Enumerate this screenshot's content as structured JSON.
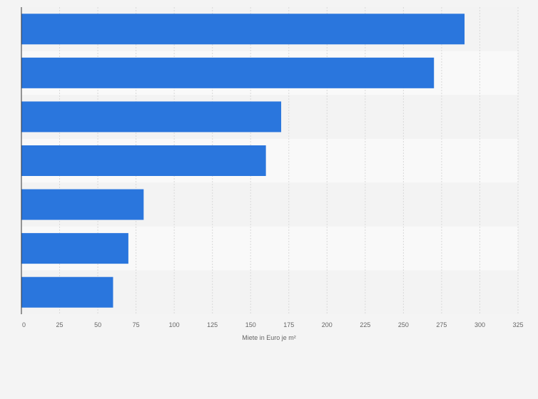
{
  "chart_data": {
    "type": "bar",
    "orientation": "horizontal",
    "title": "",
    "xlabel": "Miete in Euro je m²",
    "ylabel": "",
    "categories": [
      "",
      "",
      "",
      "",
      "",
      "",
      ""
    ],
    "values": [
      290,
      270,
      170,
      160,
      80,
      70,
      60
    ],
    "xlim": [
      0,
      325
    ],
    "xticks": [
      0,
      25,
      50,
      75,
      100,
      125,
      150,
      175,
      200,
      225,
      250,
      275,
      300,
      325
    ],
    "grid": true,
    "legend": "none",
    "colors": {
      "bar": "#2a76dd",
      "background": "#f4f4f4",
      "band_light": "#f9f9f9",
      "band_dark": "#f3f3f3",
      "grid": "#d9d9d9",
      "axis": "#333333",
      "text": "#666666"
    }
  }
}
